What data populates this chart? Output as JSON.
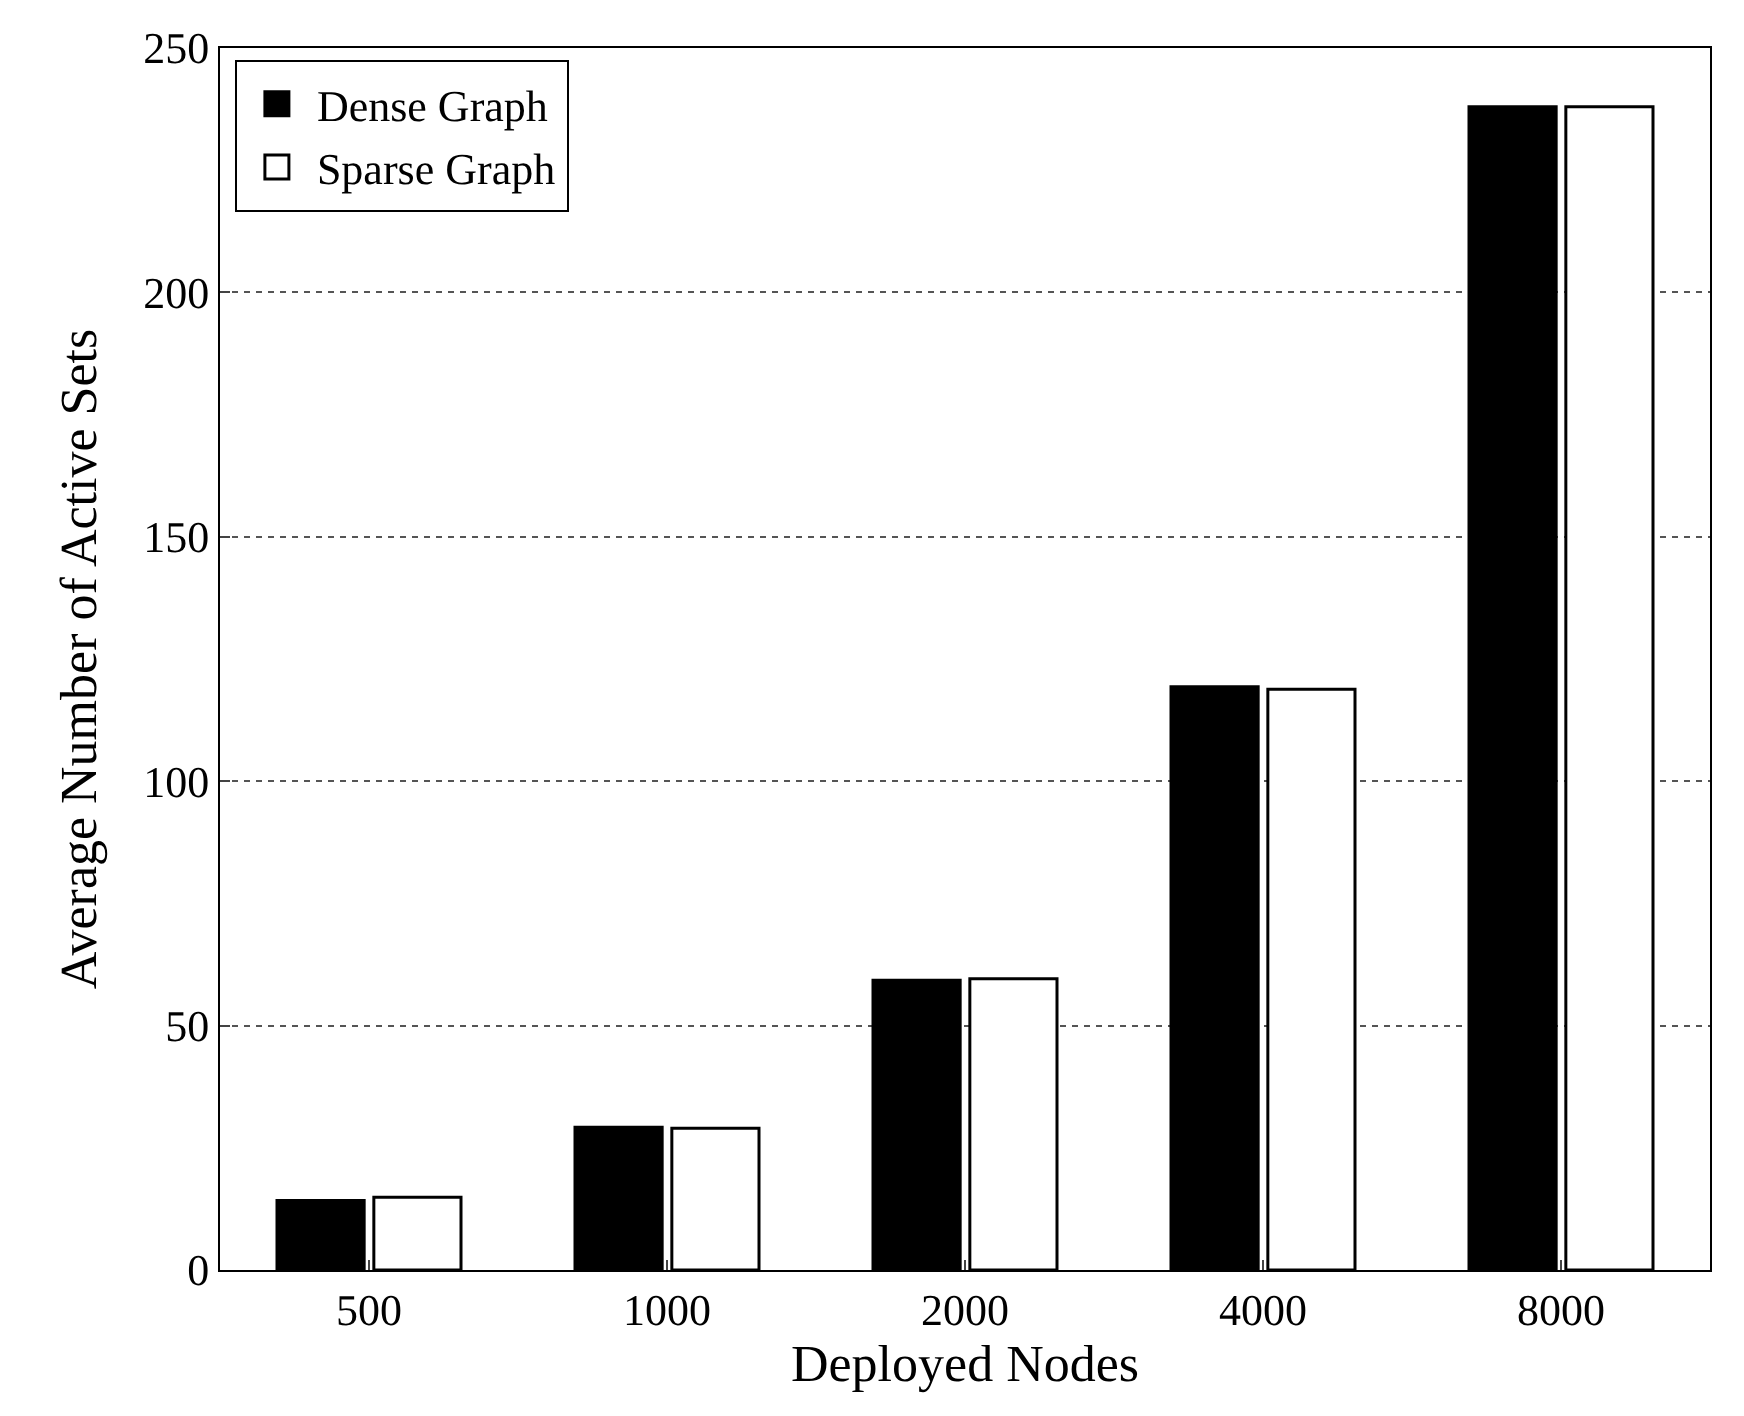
{
  "chart_data": {
    "type": "bar",
    "xlabel": "Deployed Nodes",
    "ylabel": "Average Number of Active Sets",
    "categories": [
      "500",
      "1000",
      "2000",
      "4000",
      "8000"
    ],
    "series": [
      {
        "name": "Dense Graph",
        "color": "#000000",
        "values": [
          14.2,
          29.2,
          59.3,
          119.3,
          238
        ]
      },
      {
        "name": "Sparse Graph",
        "color": "#ffffff",
        "values": [
          14.9,
          29,
          59.6,
          118.8,
          238
        ]
      }
    ],
    "ylim": [
      0,
      250
    ],
    "yticks": [
      0,
      50,
      100,
      150,
      200,
      250
    ],
    "grid": "y",
    "legend": "top left"
  }
}
